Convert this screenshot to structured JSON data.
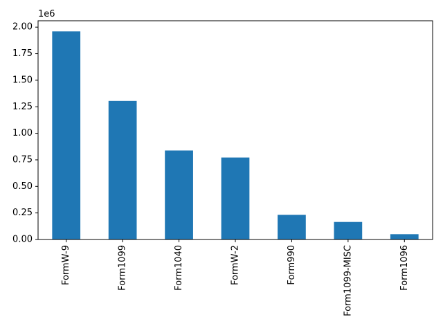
{
  "chart_data": {
    "type": "bar",
    "title": "",
    "xlabel": "",
    "ylabel": "",
    "categories": [
      "FormW-9",
      "Form1099",
      "Form1040",
      "FormW-2",
      "Form990",
      "Form1099-MISC",
      "Form1096"
    ],
    "values": [
      1960000,
      1305000,
      838000,
      772000,
      232000,
      165000,
      50000
    ],
    "ylim": [
      0,
      2060000
    ],
    "yticks": [
      0,
      250000,
      500000,
      750000,
      1000000,
      1250000,
      1500000,
      1750000,
      2000000
    ],
    "ytick_labels": [
      "0.00",
      "0.25",
      "0.50",
      "0.75",
      "1.00",
      "1.25",
      "1.50",
      "1.75",
      "2.00"
    ],
    "y_offset_label": "1e6",
    "bar_color": "#1f77b4",
    "grid": false,
    "legend": "none"
  }
}
